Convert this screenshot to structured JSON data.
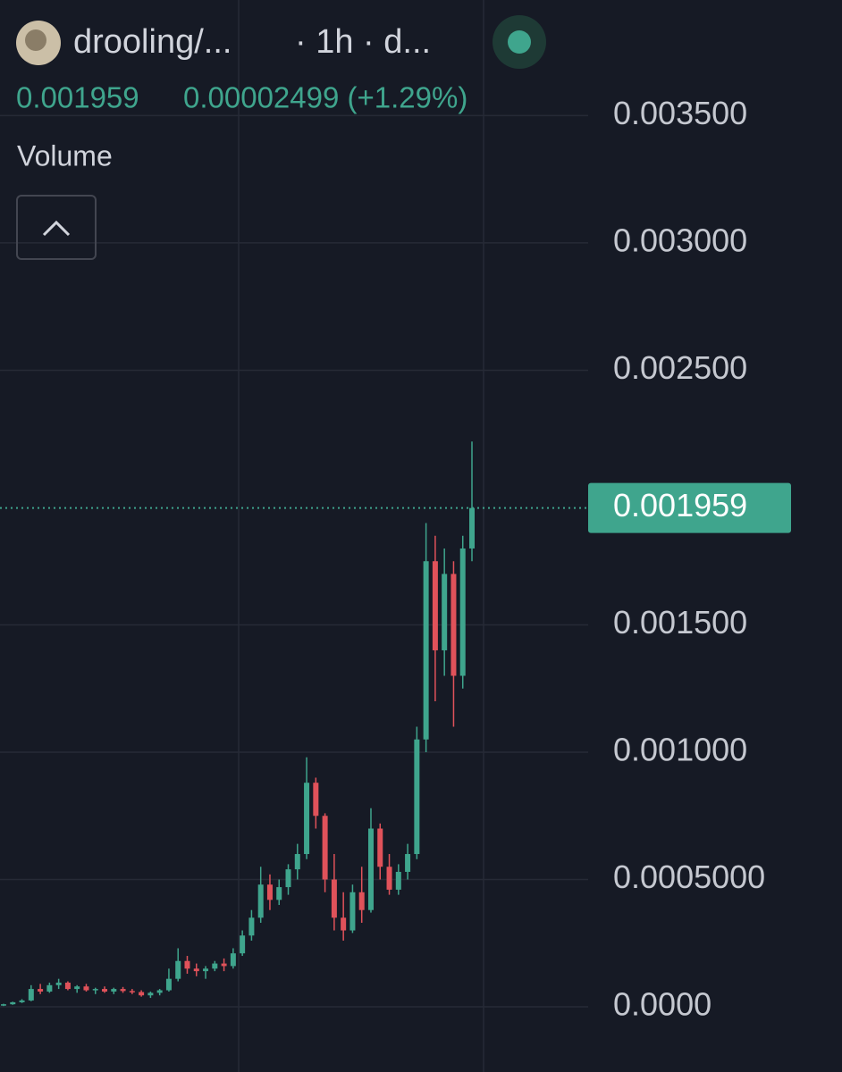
{
  "chart_data": {
    "type": "candlestick",
    "symbol": "drooling/...",
    "interval": "· 1h · d...",
    "header_price": "0.001959",
    "header_change": "0.00002499 (+1.29%)",
    "indicator": "Volume",
    "last_price": 0.001959,
    "up_color": "#3fa58d",
    "down_color": "#e0525a",
    "ylim": [
      -0.000256,
      0.003954
    ],
    "yticks": [
      {
        "value": 0,
        "label": "0.0000"
      },
      {
        "value": 0.0005,
        "label": "0.0005000"
      },
      {
        "value": 0.001,
        "label": "0.001000"
      },
      {
        "value": 0.0015,
        "label": "0.001500"
      },
      {
        "value": 0.0025,
        "label": "0.002500"
      },
      {
        "value": 0.003,
        "label": "0.003000"
      },
      {
        "value": 0.0035,
        "label": "0.003500"
      }
    ],
    "grid": true,
    "open": [
      5e-06,
      1e-05,
      1.8e-05,
      2.5e-05,
      7e-05,
      6e-05,
      8.5e-05,
      9.5e-05,
      7e-05,
      8e-05,
      6.5e-05,
      7e-05,
      6e-05,
      7e-05,
      6.2e-05,
      5.8e-05,
      4.5e-05,
      5.5e-05,
      6.5e-05,
      0.00011,
      0.00018,
      0.00015,
      0.00014,
      0.00015,
      0.00017,
      0.00016,
      0.00021,
      0.00028,
      0.00035,
      0.00048,
      0.00042,
      0.00047,
      0.00054,
      0.0006,
      0.00088,
      0.00075,
      0.0005,
      0.00035,
      0.0003,
      0.00045,
      0.00038,
      0.0007,
      0.00055,
      0.00046,
      0.00053,
      0.0006,
      0.00105,
      0.00175,
      0.0014,
      0.0017,
      0.0013,
      0.0018
    ],
    "high": [
      1.2e-05,
      2e-05,
      3e-05,
      8.5e-05,
      9e-05,
      9.5e-05,
      0.00011,
      0.0001,
      8.5e-05,
      9e-05,
      7.5e-05,
      8e-05,
      7.5e-05,
      7.8e-05,
      7e-05,
      6.5e-05,
      6e-05,
      7e-05,
      0.00015,
      0.00023,
      0.0002,
      0.00017,
      0.00016,
      0.00018,
      0.00019,
      0.00023,
      0.0003,
      0.00038,
      0.00055,
      0.00052,
      0.0005,
      0.00056,
      0.00064,
      0.00098,
      0.0009,
      0.00076,
      0.0006,
      0.00045,
      0.00048,
      0.00055,
      0.00078,
      0.00072,
      0.0006,
      0.00056,
      0.00064,
      0.0011,
      0.0019,
      0.00185,
      0.0018,
      0.00175,
      0.00185,
      0.00222
    ],
    "low": [
      3e-06,
      8e-06,
      1.5e-05,
      2.2e-05,
      5e-05,
      5.5e-05,
      7e-05,
      6.5e-05,
      5.5e-05,
      6e-05,
      5e-05,
      5.5e-05,
      5e-05,
      5.5e-05,
      5e-05,
      4e-05,
      3.5e-05,
      4.5e-05,
      6e-05,
      0.0001,
      0.00013,
      0.00012,
      0.00011,
      0.00014,
      0.00014,
      0.00015,
      0.0002,
      0.00026,
      0.00033,
      0.00038,
      0.0004,
      0.00044,
      0.0005,
      0.00058,
      0.0007,
      0.00045,
      0.0003,
      0.00026,
      0.00029,
      0.00033,
      0.00037,
      0.0005,
      0.00044,
      0.00044,
      0.0005,
      0.00058,
      0.001,
      0.0012,
      0.0013,
      0.0011,
      0.00125,
      0.00175
    ],
    "close": [
      1e-05,
      1.8e-05,
      2.5e-05,
      7e-05,
      6e-05,
      8.5e-05,
      9.5e-05,
      7e-05,
      8e-05,
      6.5e-05,
      7e-05,
      6e-05,
      7e-05,
      6.2e-05,
      5.8e-05,
      4.5e-05,
      5.5e-05,
      6.5e-05,
      0.00011,
      0.00018,
      0.00015,
      0.00014,
      0.00015,
      0.00017,
      0.00016,
      0.00021,
      0.00028,
      0.00035,
      0.00048,
      0.00042,
      0.00047,
      0.00054,
      0.0006,
      0.00088,
      0.00075,
      0.0005,
      0.00035,
      0.0003,
      0.00045,
      0.00038,
      0.0007,
      0.00055,
      0.00046,
      0.00053,
      0.0006,
      0.00105,
      0.00175,
      0.0014,
      0.0017,
      0.0013,
      0.0018,
      0.001959
    ]
  }
}
